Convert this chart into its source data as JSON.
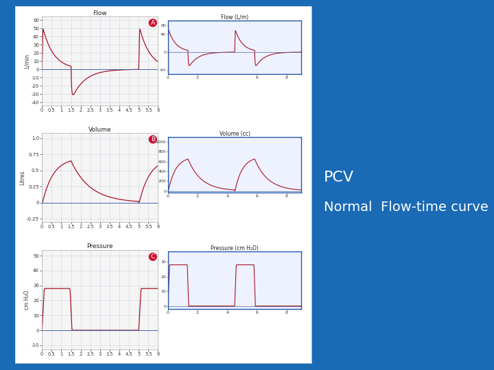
{
  "bg_color": "#1a6ab5",
  "panel_bg": "#ffffff",
  "curve_color": "#aa1122",
  "axis_color": "#4466aa",
  "grid_color": "#c0cce0",
  "title_flow": "Flow",
  "title_volume": "Volume",
  "title_pressure": "Pressure",
  "label_A": "A",
  "label_B": "B",
  "label_C": "C",
  "ylabel_flow": "L/min",
  "ylabel_volume": "Litres",
  "ylabel_pressure": "cm H₂O",
  "inset_flow_title": "Flow (L/m)",
  "inset_volume_title": "Volume (cc)",
  "inset_pressure_title": "Pressure (cm H₂O)",
  "text_pcv": "PCV",
  "text_subtitle": "Normal  Flow-time curve",
  "text_color_right": "#ffffff",
  "pcv_fontsize": 16,
  "subtitle_fontsize": 14,
  "insp_dur": 1.5,
  "exp_dur": 3.5,
  "flow_peak": 50,
  "flow_neg_peak": -38,
  "vol_peak": 0.65,
  "pres_peak": 28
}
